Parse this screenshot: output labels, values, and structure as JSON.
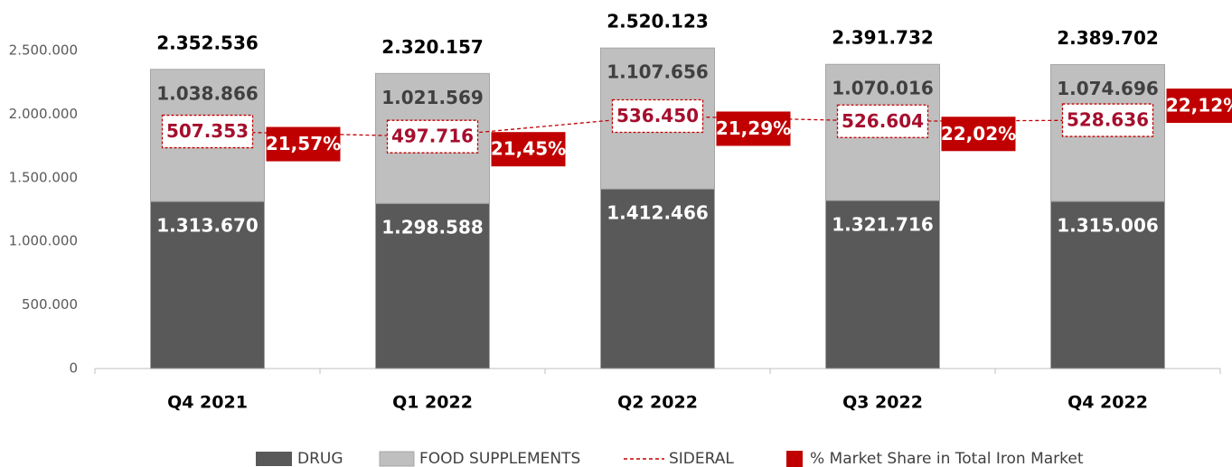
{
  "chart_data": {
    "type": "bar",
    "stacked": true,
    "categories": [
      "Q4 2021",
      "Q1 2022",
      "Q2 2022",
      "Q3 2022",
      "Q4 2022"
    ],
    "series": [
      {
        "name": "DRUG",
        "color": "#595959",
        "values": [
          1313670,
          1298588,
          1412466,
          1321716,
          1315006
        ],
        "value_labels": [
          "1.313.670",
          "1.298.588",
          "1.412.466",
          "1.321.716",
          "1.315.006"
        ]
      },
      {
        "name": "FOOD SUPPLEMENTS",
        "color": "#bfbfbf",
        "values": [
          1038866,
          1021569,
          1107656,
          1070016,
          1074696
        ],
        "value_labels": [
          "1.038.866",
          "1.021.569",
          "1.107.656",
          "1.070.016",
          "1.074.696"
        ]
      },
      {
        "name": "SIDERAL",
        "type": "line",
        "axis": "y2",
        "dashed": true,
        "color": "#c00000",
        "values": [
          507353,
          497716,
          536450,
          526604,
          528636
        ],
        "value_labels": [
          "507.353",
          "497.716",
          "536.450",
          "526.604",
          "528.636"
        ]
      },
      {
        "name": "% Market Share in Total Iron Market",
        "type": "label",
        "color": "#c00000",
        "values": [
          21.57,
          21.45,
          21.29,
          22.02,
          22.12
        ],
        "value_labels": [
          "21,57%",
          "21,45%",
          "21,29%",
          "22,02%",
          "22,12%"
        ]
      }
    ],
    "totals": {
      "values": [
        2352536,
        2320157,
        2520123,
        2391732,
        2389702
      ],
      "value_labels": [
        "2.352.536",
        "2.320.157",
        "2.520.123",
        "2.391.732",
        "2.389.702"
      ]
    },
    "ylim": [
      0,
      2500000
    ],
    "yticks": [
      0,
      {
        "value": 500000,
        "label": "500.000"
      },
      {
        "value": 1000000,
        "label": "1.000.000"
      },
      {
        "value": 1500000,
        "label": "1.500.000"
      },
      {
        "value": 2000000,
        "label": "2.000.000"
      },
      {
        "value": 2500000,
        "label": "2.500.000"
      }
    ],
    "y2lim": [
      60000,
      660000
    ],
    "grid": false
  }
}
